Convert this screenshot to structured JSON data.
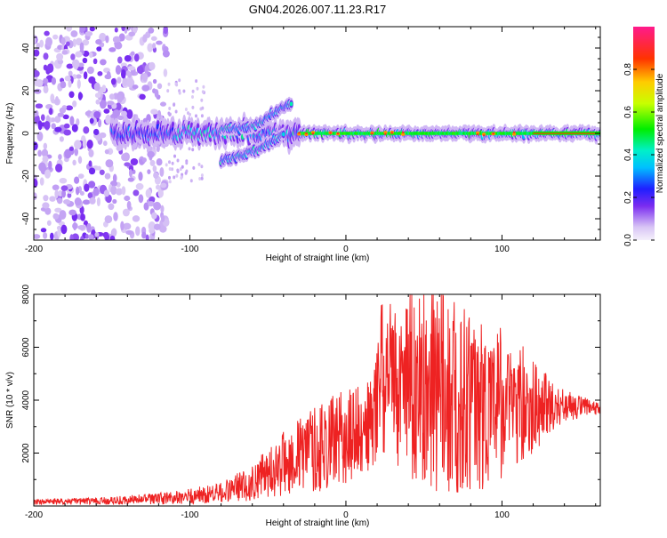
{
  "title": "GN04.2026.007.11.23.R17",
  "colors": {
    "snr_line": "#ee2222",
    "band_core": "#22aa44",
    "band_peak": "#ff2244"
  },
  "chart_data": [
    {
      "type": "heatmap",
      "xlabel": "Height of straight line (km)",
      "ylabel": "Frequency (Hz)",
      "xlim": [
        -200,
        163
      ],
      "ylim": [
        -50,
        50
      ],
      "xticks": [
        -200,
        -100,
        0,
        100
      ],
      "xtick_labels": [
        "-200",
        "-100",
        "0",
        "100"
      ],
      "yticks": [
        -40,
        -20,
        0,
        20,
        40
      ],
      "ytick_labels": [
        "-40",
        "-20",
        "0",
        "20",
        "40"
      ],
      "colorbar": {
        "label": "Normalized spectral amplitude",
        "range": [
          0,
          1
        ],
        "ticks": [
          0,
          0.2,
          0.4,
          0.6,
          0.8
        ],
        "tick_labels": [
          "0.0",
          "0.2",
          "0.4",
          "0.6",
          "0.8"
        ],
        "colormap": "rainbow (white-violet-blue-cyan-green-yellow-red-magenta)"
      },
      "features": {
        "noise_region_x": [
          -200,
          -115
        ],
        "main_band_x": [
          -150,
          163
        ],
        "main_band_freq": 0,
        "upper_branch": [
          [
            -80,
            2
          ],
          [
            -60,
            3
          ],
          [
            -45,
            10
          ],
          [
            -35,
            14
          ]
        ],
        "lower_branch": [
          [
            -80,
            -13
          ],
          [
            -65,
            -10
          ],
          [
            -50,
            -5
          ],
          [
            -40,
            0
          ]
        ],
        "peak_region_x": [
          -30,
          110
        ]
      }
    },
    {
      "type": "line",
      "xlabel": "Height of straight line (km)",
      "ylabel": "SNR (10 * v/v)",
      "xlim": [
        -200,
        163
      ],
      "ylim": [
        0,
        8000
      ],
      "xticks": [
        -200,
        -100,
        0,
        100
      ],
      "xtick_labels": [
        "-200",
        "-100",
        "0",
        "100"
      ],
      "yticks": [
        2000,
        4000,
        6000,
        8000
      ],
      "ytick_labels": [
        "2000",
        "4000",
        "6000",
        "8000"
      ],
      "envelope": [
        {
          "x": -200,
          "mean": 150,
          "spread": 100
        },
        {
          "x": -150,
          "mean": 200,
          "spread": 150
        },
        {
          "x": -110,
          "mean": 300,
          "spread": 250
        },
        {
          "x": -80,
          "mean": 500,
          "spread": 400
        },
        {
          "x": -60,
          "mean": 900,
          "spread": 700
        },
        {
          "x": -40,
          "mean": 1600,
          "spread": 1200
        },
        {
          "x": -20,
          "mean": 2200,
          "spread": 1700
        },
        {
          "x": 0,
          "mean": 2600,
          "spread": 1800
        },
        {
          "x": 15,
          "mean": 3000,
          "spread": 1800
        },
        {
          "x": 22,
          "mean": 4500,
          "spread": 2500
        },
        {
          "x": 40,
          "mean": 4300,
          "spread": 3200
        },
        {
          "x": 60,
          "mean": 4000,
          "spread": 3600
        },
        {
          "x": 80,
          "mean": 3800,
          "spread": 3400
        },
        {
          "x": 100,
          "mean": 3600,
          "spread": 2600
        },
        {
          "x": 120,
          "mean": 3800,
          "spread": 1800
        },
        {
          "x": 140,
          "mean": 3800,
          "spread": 600
        },
        {
          "x": 163,
          "mean": 3650,
          "spread": 250
        }
      ]
    }
  ]
}
